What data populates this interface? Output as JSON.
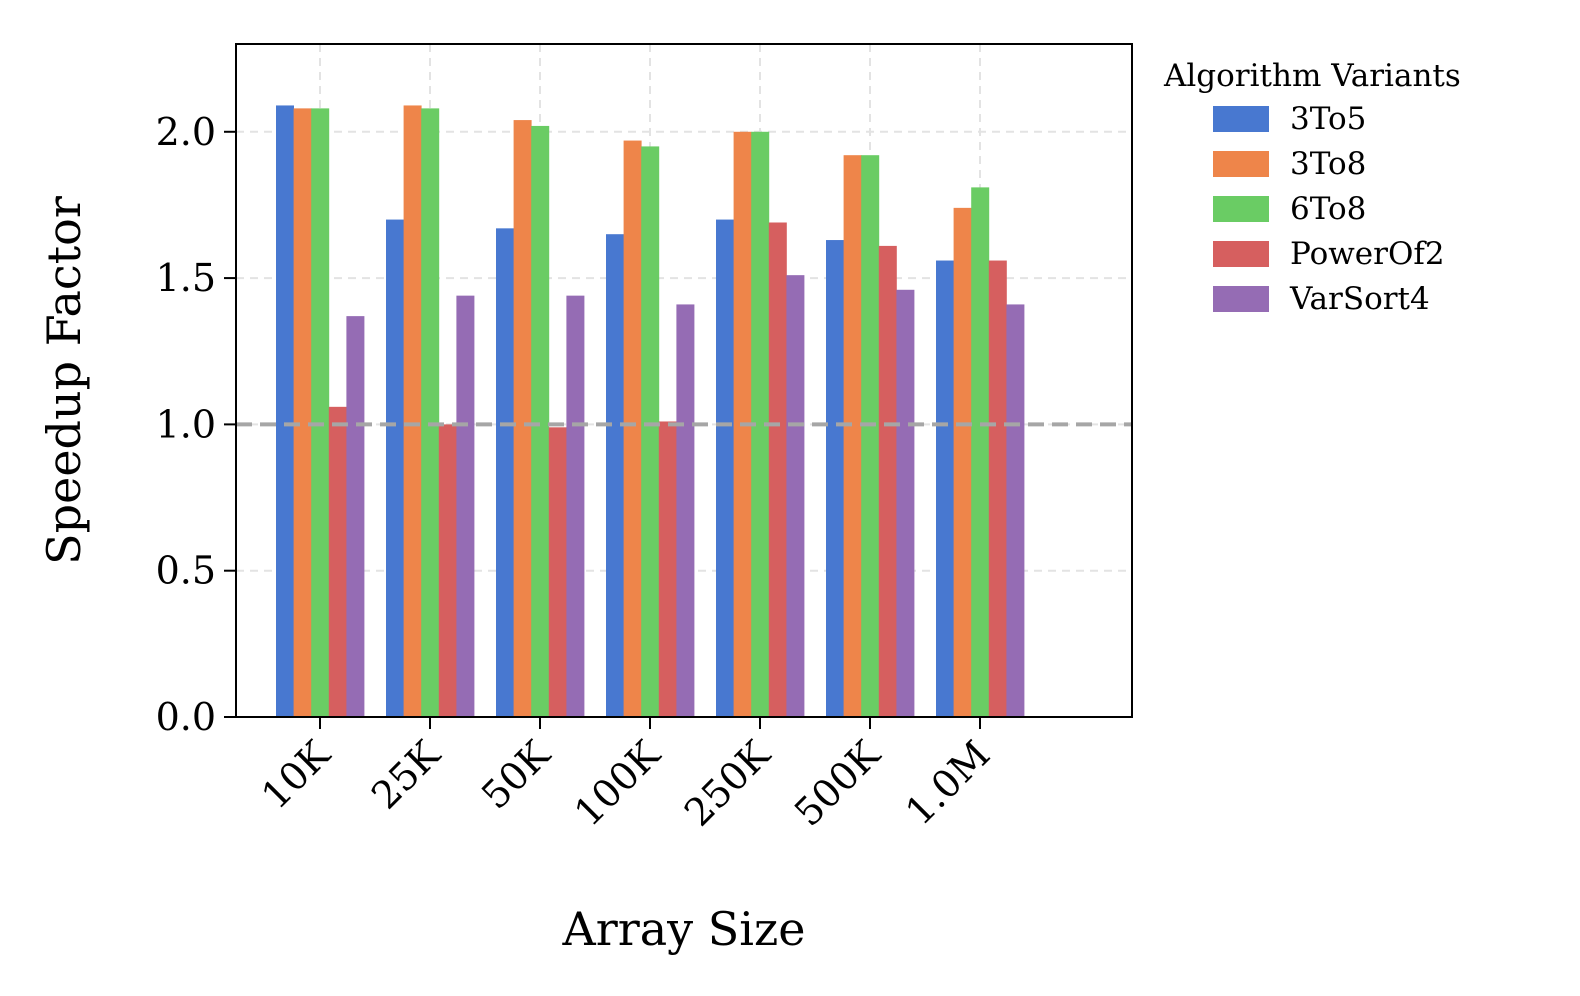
{
  "chart_data": {
    "type": "bar",
    "title": "",
    "xlabel": "Array Size",
    "ylabel": "Speedup Factor",
    "categories": [
      "10K",
      "25K",
      "50K",
      "100K",
      "250K",
      "500K",
      "1.0M"
    ],
    "series": [
      {
        "name": "3To5",
        "color": "#4878d0",
        "values": [
          2.09,
          1.7,
          1.67,
          1.65,
          1.7,
          1.63,
          1.56
        ]
      },
      {
        "name": "3To8",
        "color": "#ee854a",
        "values": [
          2.08,
          2.09,
          2.04,
          1.97,
          2.0,
          1.92,
          1.74
        ]
      },
      {
        "name": "6To8",
        "color": "#6acc64",
        "values": [
          2.08,
          2.08,
          2.02,
          1.95,
          2.0,
          1.92,
          1.81
        ]
      },
      {
        "name": "PowerOf2",
        "color": "#d65f5f",
        "values": [
          1.06,
          1.0,
          0.99,
          1.01,
          1.69,
          1.61,
          1.56
        ]
      },
      {
        "name": "VarSort4",
        "color": "#956cb4",
        "values": [
          1.37,
          1.44,
          1.44,
          1.41,
          1.51,
          1.46,
          1.41
        ]
      }
    ],
    "ylim": [
      0,
      2.3
    ],
    "yticks": [
      "0.0",
      "0.5",
      "1.0",
      "1.5",
      "2.0"
    ],
    "reference_line": {
      "y": 1.0,
      "style": "dashed",
      "color": "#a6a6a6"
    },
    "grid": true,
    "legend": {
      "title": "Algorithm Variants",
      "placement": "outside-top-right"
    }
  }
}
